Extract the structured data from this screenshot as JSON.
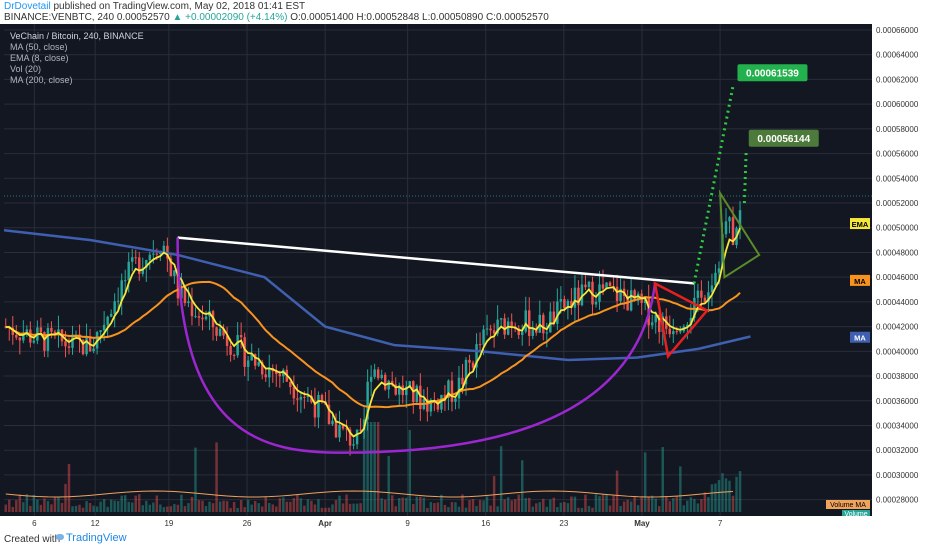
{
  "header": {
    "author": "DrDovetail",
    "published": "published on TradingView.com, May 02, 2018 01:41 EST",
    "symbol": "BINANCE:VENBTC, 240",
    "last": "0.00052570",
    "change": "+0.00002090 (+4.14%)",
    "ohlc": "O:0.00051400 H:0.00052848 L:0.00050890 C:0.00052570"
  },
  "legend": {
    "title": "VeChain / Bitcoin, 240, BINANCE",
    "items": [
      "MA (50, close)",
      "EMA (8, close)",
      "Vol (20)",
      "MA (200, close)"
    ]
  },
  "footer": {
    "created": "Created with",
    "brand": "TradingView"
  },
  "colors": {
    "bg": "#131722",
    "grid": "#2a2e39",
    "up": "#26a69a",
    "down": "#ef5350",
    "ema": "#f5e83b",
    "ma50": "#f7931e",
    "ma200": "#3f5fb0",
    "cup": "#9c27d0",
    "neckline": "#ffffff",
    "triangle": "#e62020",
    "target": "#2ecc40",
    "pennant": "#5a8a2a"
  },
  "chart_data": {
    "type": "candlestick",
    "title": "VeChain / Bitcoin, 240, BINANCE",
    "y_range": [
      0.00027,
      0.00066
    ],
    "y_ticks": [
      "0.00066000",
      "0.00064000",
      "0.00062000",
      "0.00060000",
      "0.00058000",
      "0.00056000",
      "0.00054000",
      "0.00052000",
      "0.00050000",
      "0.00048000",
      "0.00046000",
      "0.00044000",
      "0.00042000",
      "0.00040000",
      "0.00038000",
      "0.00036000",
      "0.00034000",
      "0.00032000",
      "0.00030000",
      "0.00028000"
    ],
    "x_ticks": [
      "6",
      "12",
      "19",
      "26",
      "Apr",
      "9",
      "16",
      "23",
      "May",
      "7"
    ],
    "price_path": [
      [
        0,
        0.00042
      ],
      [
        0.04,
        0.00041
      ],
      [
        0.08,
        0.000405
      ],
      [
        0.1,
        0.000405
      ],
      [
        0.13,
        0.00045
      ],
      [
        0.15,
        0.00047
      ],
      [
        0.18,
        0.00049
      ],
      [
        0.2,
        0.000445
      ],
      [
        0.24,
        0.00042
      ],
      [
        0.28,
        0.000395
      ],
      [
        0.32,
        0.00038
      ],
      [
        0.36,
        0.000355
      ],
      [
        0.39,
        0.000332
      ],
      [
        0.41,
        0.000325
      ],
      [
        0.42,
        0.00039
      ],
      [
        0.45,
        0.00037
      ],
      [
        0.49,
        0.000358
      ],
      [
        0.52,
        0.00037
      ],
      [
        0.55,
        0.00041
      ],
      [
        0.58,
        0.000425
      ],
      [
        0.62,
        0.00042
      ],
      [
        0.65,
        0.00044
      ],
      [
        0.68,
        0.00045
      ],
      [
        0.71,
        0.000445
      ],
      [
        0.74,
        0.000432
      ],
      [
        0.76,
        0.00042
      ],
      [
        0.78,
        0.000428
      ],
      [
        0.8,
        0.00044
      ],
      [
        0.82,
        0.00047
      ],
      [
        0.83,
        0.000505
      ],
      [
        0.84,
        0.00049
      ],
      [
        0.85,
        0.000525
      ]
    ],
    "annotations": {
      "target_1": "0.00061539",
      "target_2": "0.00056144",
      "current": "0.00052570",
      "labels": [
        "EMA",
        "MA",
        "MA"
      ],
      "volume_labels": [
        "Volume MA",
        "Volume"
      ]
    }
  }
}
